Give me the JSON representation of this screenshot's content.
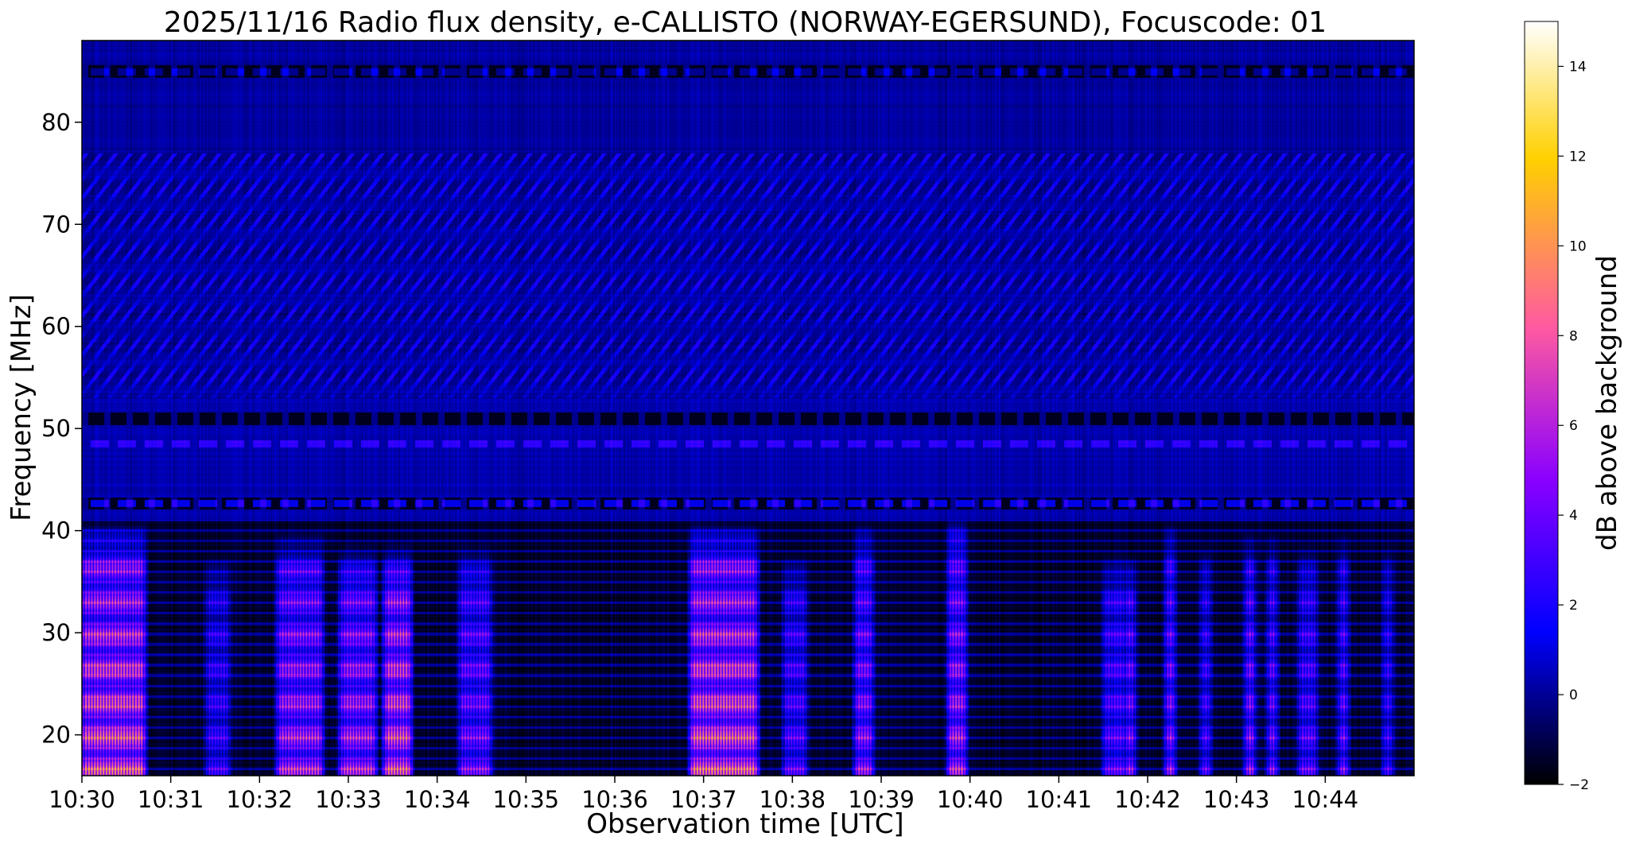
{
  "chart_data": {
    "type": "heatmap",
    "title": "2025/11/16  Radio flux density, e-CALLISTO (NORWAY-EGERSUND), Focuscode: 01",
    "xlabel": "Observation time [UTC]",
    "ylabel": "Frequency [MHz]",
    "x_range_minutes": [
      0,
      15
    ],
    "x_ticks": [
      {
        "label": "10:30",
        "minute": 0
      },
      {
        "label": "10:31",
        "minute": 1
      },
      {
        "label": "10:32",
        "minute": 2
      },
      {
        "label": "10:33",
        "minute": 3
      },
      {
        "label": "10:34",
        "minute": 4
      },
      {
        "label": "10:35",
        "minute": 5
      },
      {
        "label": "10:36",
        "minute": 6
      },
      {
        "label": "10:37",
        "minute": 7
      },
      {
        "label": "10:38",
        "minute": 8
      },
      {
        "label": "10:39",
        "minute": 9
      },
      {
        "label": "10:40",
        "minute": 10
      },
      {
        "label": "10:41",
        "minute": 11
      },
      {
        "label": "10:42",
        "minute": 12
      },
      {
        "label": "10:43",
        "minute": 13
      },
      {
        "label": "10:44",
        "minute": 14
      }
    ],
    "ylim": [
      16,
      88
    ],
    "y_ticks": [
      20,
      30,
      40,
      50,
      60,
      70,
      80
    ],
    "colorbar": {
      "label": "dB above background",
      "range": [
        -2,
        15
      ],
      "ticks": [
        -2,
        0,
        2,
        4,
        6,
        8,
        10,
        12,
        14
      ],
      "colormap": "gnuplot2",
      "colors": [
        "#000000",
        "#0000ff",
        "#8a00ff",
        "#ff5aa0",
        "#ffd000",
        "#ffffff"
      ]
    },
    "features": {
      "background_db": 0.3,
      "dark_bands_mhz": [
        85,
        51,
        42.7
      ],
      "bright_lines_mhz": [
        [
          42.7,
          1.8
        ],
        [
          48.5,
          1.5
        ],
        [
          85,
          1.0
        ]
      ],
      "diagonal_pattern_mhz": [
        53,
        77
      ],
      "bursts": [
        {
          "t": 0.0,
          "w": 0.7,
          "fmax": 37,
          "peak": 13.5
        },
        {
          "t": 1.4,
          "w": 0.25,
          "fmax": 34,
          "peak": 7
        },
        {
          "t": 2.2,
          "w": 0.5,
          "fmax": 36,
          "peak": 11
        },
        {
          "t": 2.9,
          "w": 0.4,
          "fmax": 35,
          "peak": 11
        },
        {
          "t": 3.4,
          "w": 0.3,
          "fmax": 35,
          "peak": 13
        },
        {
          "t": 4.25,
          "w": 0.35,
          "fmax": 35,
          "peak": 9
        },
        {
          "t": 6.85,
          "w": 0.75,
          "fmax": 37,
          "peak": 13.5
        },
        {
          "t": 7.9,
          "w": 0.25,
          "fmax": 34,
          "peak": 8
        },
        {
          "t": 8.7,
          "w": 0.2,
          "fmax": 37,
          "peak": 10
        },
        {
          "t": 9.75,
          "w": 0.2,
          "fmax": 38,
          "peak": 11
        },
        {
          "t": 11.5,
          "w": 0.25,
          "fmax": 34,
          "peak": 8
        },
        {
          "t": 11.75,
          "w": 0.1,
          "fmax": 34,
          "peak": 10
        },
        {
          "t": 12.2,
          "w": 0.1,
          "fmax": 37,
          "peak": 10
        },
        {
          "t": 12.6,
          "w": 0.1,
          "fmax": 35,
          "peak": 8
        },
        {
          "t": 13.1,
          "w": 0.1,
          "fmax": 36,
          "peak": 10
        },
        {
          "t": 13.35,
          "w": 0.1,
          "fmax": 36,
          "peak": 9
        },
        {
          "t": 13.7,
          "w": 0.2,
          "fmax": 35,
          "peak": 8
        },
        {
          "t": 14.15,
          "w": 0.1,
          "fmax": 36,
          "peak": 9
        },
        {
          "t": 14.65,
          "w": 0.1,
          "fmax": 35,
          "peak": 7
        }
      ]
    }
  }
}
